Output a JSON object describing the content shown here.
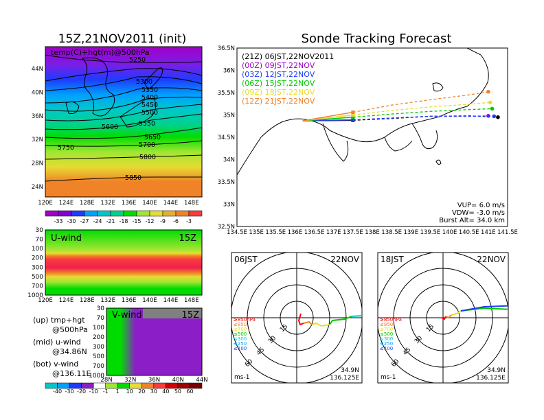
{
  "chart_data": [
    {
      "type": "heatmap",
      "title": "15Z,21NOV2011 (init)",
      "subtitle": "temp(C)+hgt(m)@500hPa",
      "xticks": [
        "120E",
        "124E",
        "128E",
        "132E",
        "136E",
        "140E",
        "144E",
        "148E"
      ],
      "yticks": [
        "44N",
        "40N",
        "36N",
        "32N",
        "28N",
        "24N"
      ],
      "contours": [
        "5250",
        "5300",
        "5350",
        "5400",
        "5450",
        "5500",
        "5550",
        "5600",
        "5650",
        "5700",
        "5750",
        "5800",
        "5850"
      ],
      "colorbar": [
        "-33",
        "-30",
        "-27",
        "-24",
        "-21",
        "-18",
        "-15",
        "-12",
        "-9",
        "-6",
        "-3"
      ],
      "colors": [
        "#a000c8",
        "#8200dc",
        "#1e3cff",
        "#00a0ff",
        "#00c8c8",
        "#00d28c",
        "#00dc00",
        "#a0e632",
        "#e6dc32",
        "#e6af2d",
        "#f08228",
        "#fa3c3c"
      ]
    },
    {
      "type": "heatmap",
      "label": "U-wind",
      "time": "15Z",
      "yticks": [
        "30",
        "70",
        "100",
        "200",
        "300",
        "500",
        "700",
        "1000"
      ],
      "xticks": [
        "120E",
        "124E",
        "128E",
        "132E",
        "136E",
        "140E",
        "144E",
        "148E"
      ]
    },
    {
      "type": "heatmap",
      "label": "V-wind",
      "time": "15Z",
      "yticks": [
        "30",
        "70",
        "100",
        "200",
        "300",
        "500",
        "700",
        "1000"
      ],
      "xticks": [
        "28N",
        "32N",
        "36N",
        "40N",
        "44N"
      ],
      "colorbar": [
        "-40",
        "-30",
        "-20",
        "-10",
        "-1",
        "1",
        "10",
        "20",
        "30",
        "40",
        "50",
        "60"
      ]
    },
    {
      "type": "line",
      "title": "Sonde Tracking Forecast",
      "xlim": [
        134.5,
        141.5
      ],
      "ylim": [
        32.5,
        36.5
      ],
      "xticks": [
        "134.5E",
        "135E",
        "135.5E",
        "136E",
        "136.5E",
        "137E",
        "137.5E",
        "138E",
        "138.5E",
        "139E",
        "139.5E",
        "140E",
        "140.5E",
        "141E",
        "141.5E"
      ],
      "yticks": [
        "36.5N",
        "36N",
        "35.5N",
        "35N",
        "34.5N",
        "34N",
        "33.5N",
        "33N",
        "32.5N"
      ],
      "series": [
        {
          "name": "(21Z)  06JST,22NOV2011",
          "color": "#000000",
          "x": [
            136.2,
            137.5,
            138.5,
            139.5,
            140.5,
            141.25
          ],
          "y": [
            34.87,
            34.88,
            34.92,
            34.97,
            34.98,
            34.95
          ]
        },
        {
          "name": "(00Z)  09JST,22NOV",
          "color": "#a000c8",
          "x": [
            136.2,
            137.5,
            138.5,
            139.5,
            140.5,
            141.0
          ],
          "y": [
            34.87,
            34.89,
            34.93,
            34.97,
            34.97,
            34.98
          ]
        },
        {
          "name": "(03Z)  12JST,22NOV",
          "color": "#1e3cff",
          "x": [
            136.2,
            137.5,
            138.5,
            139.5,
            140.5,
            141.15
          ],
          "y": [
            34.87,
            34.89,
            34.93,
            34.97,
            34.97,
            34.97
          ]
        },
        {
          "name": "(06Z)  15JST,22NOV",
          "color": "#00c800",
          "x": [
            136.2,
            137.5,
            138.5,
            139.5,
            140.5,
            141.1
          ],
          "y": [
            34.87,
            34.95,
            35.02,
            35.08,
            35.12,
            35.14
          ]
        },
        {
          "name": "(09Z)  18JST,22NOV",
          "color": "#e6dc32",
          "x": [
            136.2,
            137.5,
            138.5,
            139.5,
            140.5,
            141.05
          ],
          "y": [
            34.87,
            35.0,
            35.1,
            35.18,
            35.24,
            35.28
          ]
        },
        {
          "name": "(12Z)  21JST,22NOV",
          "color": "#f08228",
          "x": [
            136.2,
            137.5,
            138.5,
            139.5,
            140.5,
            141.0
          ],
          "y": [
            34.87,
            35.06,
            35.22,
            35.34,
            35.45,
            35.52
          ]
        }
      ],
      "stats": [
        "VUP=  6.0  m/s",
        "VDW= -3.0  m/s",
        "Burst Alt=  34.0  km"
      ]
    },
    {
      "type": "scatter",
      "label": "06JST",
      "date": "22NOV",
      "rings": [
        "15",
        "30",
        "45",
        "60"
      ],
      "unit": "ms-1",
      "location": [
        "34.9N",
        "136.125E"
      ],
      "legend": [
        {
          "label": "≥850hPa",
          "color": "#fa0000"
        },
        {
          "label": "≤850",
          "color": "#f08228"
        },
        {
          "label": "≤700",
          "color": "#e6dc32"
        },
        {
          "label": "≤500",
          "color": "#00c800"
        },
        {
          "label": "≤300",
          "color": "#00c8c8"
        },
        {
          "label": "≤250",
          "color": "#00a0ff"
        },
        {
          "label": "≤100",
          "color": "#1e3cff"
        }
      ]
    },
    {
      "type": "scatter",
      "label": "18JST",
      "date": "22NOV",
      "rings": [
        "15",
        "30",
        "45",
        "60"
      ],
      "unit": "ms-1",
      "location": [
        "34.9N",
        "136.125E"
      ],
      "legend": [
        {
          "label": "≥850hPa",
          "color": "#fa0000"
        },
        {
          "label": "≤850",
          "color": "#f08228"
        },
        {
          "label": "≤700",
          "color": "#e6dc32"
        },
        {
          "label": "≤500",
          "color": "#00c800"
        },
        {
          "label": "≤300",
          "color": "#00c8c8"
        },
        {
          "label": "≤250",
          "color": "#00a0ff"
        },
        {
          "label": "≤100",
          "color": "#1e3cff"
        }
      ]
    }
  ],
  "legend_text": {
    "up": "(up) tmp+hgt",
    "up2": "@500hPa",
    "mid": "(mid) u-wind",
    "mid2": "@34.86N",
    "bot": "(bot) v-wind",
    "bot2": "@136.11E"
  }
}
